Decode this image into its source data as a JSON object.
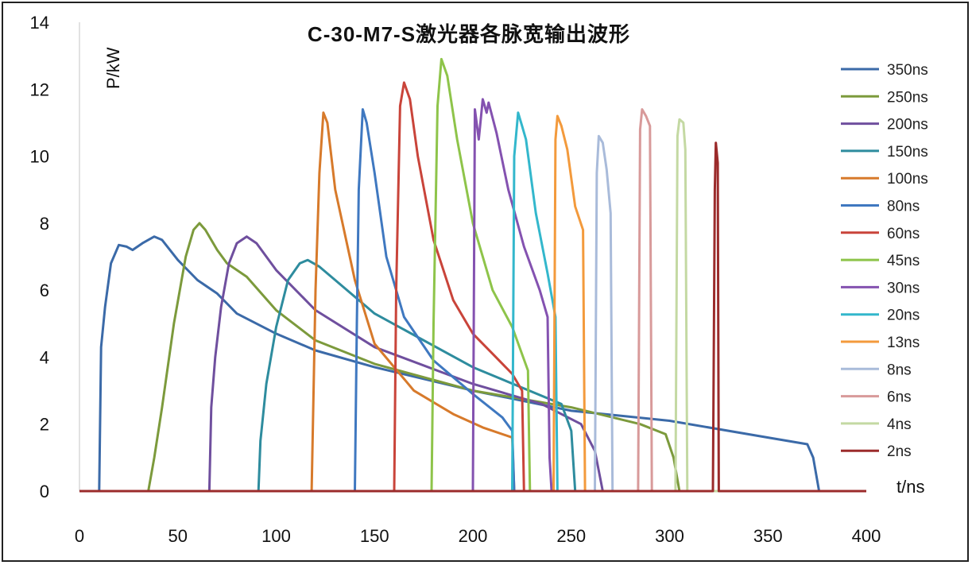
{
  "chart_data": {
    "type": "line",
    "title": "C-30-M7-S激光器各脉宽输出波形",
    "xlabel": "t/ns",
    "ylabel": "P/kW",
    "xlim": [
      0,
      400
    ],
    "ylim": [
      0,
      14
    ],
    "x_ticks": [
      "0",
      "50",
      "100",
      "150",
      "200",
      "250",
      "300",
      "350",
      "400"
    ],
    "y_ticks": [
      "0",
      "2",
      "4",
      "6",
      "8",
      "10",
      "12",
      "14"
    ],
    "grid": false,
    "legend_position": "right",
    "series": [
      {
        "name": "350ns",
        "color": "#3b6aa8",
        "points": [
          [
            0,
            0
          ],
          [
            10,
            0
          ],
          [
            11,
            4.3
          ],
          [
            13,
            5.5
          ],
          [
            16,
            6.8
          ],
          [
            20,
            7.35
          ],
          [
            24,
            7.3
          ],
          [
            27,
            7.2
          ],
          [
            32,
            7.4
          ],
          [
            38,
            7.6
          ],
          [
            42,
            7.5
          ],
          [
            50,
            6.9
          ],
          [
            60,
            6.3
          ],
          [
            70,
            5.9
          ],
          [
            80,
            5.3
          ],
          [
            100,
            4.7
          ],
          [
            120,
            4.2
          ],
          [
            150,
            3.7
          ],
          [
            200,
            3.0
          ],
          [
            250,
            2.4
          ],
          [
            300,
            2.1
          ],
          [
            350,
            1.6
          ],
          [
            370,
            1.4
          ],
          [
            373,
            1.0
          ],
          [
            376,
            0
          ],
          [
            400,
            0
          ]
        ]
      },
      {
        "name": "250ns",
        "color": "#7c9a3c",
        "points": [
          [
            0,
            0
          ],
          [
            35,
            0
          ],
          [
            38,
            1.0
          ],
          [
            42,
            2.5
          ],
          [
            48,
            5.0
          ],
          [
            54,
            7.0
          ],
          [
            58,
            7.8
          ],
          [
            61,
            8.0
          ],
          [
            64,
            7.8
          ],
          [
            70,
            7.2
          ],
          [
            75,
            6.8
          ],
          [
            85,
            6.4
          ],
          [
            100,
            5.4
          ],
          [
            120,
            4.5
          ],
          [
            150,
            3.8
          ],
          [
            200,
            3.0
          ],
          [
            250,
            2.5
          ],
          [
            285,
            2.0
          ],
          [
            298,
            1.7
          ],
          [
            302,
            1.0
          ],
          [
            305,
            0
          ],
          [
            400,
            0
          ]
        ]
      },
      {
        "name": "200ns",
        "color": "#6f4f9e",
        "points": [
          [
            0,
            0
          ],
          [
            66,
            0
          ],
          [
            67,
            2.5
          ],
          [
            69,
            4.0
          ],
          [
            72,
            5.5
          ],
          [
            76,
            6.8
          ],
          [
            80,
            7.4
          ],
          [
            85,
            7.6
          ],
          [
            90,
            7.4
          ],
          [
            100,
            6.6
          ],
          [
            120,
            5.4
          ],
          [
            150,
            4.3
          ],
          [
            200,
            3.2
          ],
          [
            235,
            2.6
          ],
          [
            255,
            2.0
          ],
          [
            262,
            1.2
          ],
          [
            266,
            0
          ],
          [
            400,
            0
          ]
        ]
      },
      {
        "name": "150ns",
        "color": "#2e8c9e",
        "points": [
          [
            0,
            0
          ],
          [
            91,
            0
          ],
          [
            92,
            1.5
          ],
          [
            95,
            3.2
          ],
          [
            100,
            4.9
          ],
          [
            106,
            6.3
          ],
          [
            112,
            6.8
          ],
          [
            116,
            6.9
          ],
          [
            122,
            6.7
          ],
          [
            130,
            6.3
          ],
          [
            150,
            5.3
          ],
          [
            200,
            3.7
          ],
          [
            245,
            2.6
          ],
          [
            250,
            1.8
          ],
          [
            252,
            0
          ],
          [
            400,
            0
          ]
        ]
      },
      {
        "name": "100ns",
        "color": "#d77a2b",
        "points": [
          [
            0,
            0
          ],
          [
            118,
            0
          ],
          [
            120,
            6.0
          ],
          [
            122,
            9.5
          ],
          [
            124,
            11.3
          ],
          [
            126,
            11.0
          ],
          [
            130,
            9.0
          ],
          [
            140,
            6.3
          ],
          [
            150,
            4.4
          ],
          [
            170,
            3.0
          ],
          [
            190,
            2.3
          ],
          [
            205,
            1.9
          ],
          [
            220,
            1.6
          ],
          [
            221,
            0
          ],
          [
            400,
            0
          ]
        ]
      },
      {
        "name": "80ns",
        "color": "#3f78c0",
        "points": [
          [
            0,
            0
          ],
          [
            140,
            0
          ],
          [
            141,
            5.0
          ],
          [
            142,
            9.0
          ],
          [
            144,
            11.4
          ],
          [
            146,
            11.0
          ],
          [
            150,
            9.5
          ],
          [
            156,
            7.0
          ],
          [
            165,
            5.2
          ],
          [
            180,
            3.9
          ],
          [
            200,
            2.9
          ],
          [
            215,
            2.2
          ],
          [
            220,
            1.8
          ],
          [
            221,
            0
          ],
          [
            400,
            0
          ]
        ]
      },
      {
        "name": "60ns",
        "color": "#c9443a",
        "points": [
          [
            0,
            0
          ],
          [
            160,
            0
          ],
          [
            161,
            6.0
          ],
          [
            163,
            11.5
          ],
          [
            165,
            12.2
          ],
          [
            168,
            11.7
          ],
          [
            172,
            10.0
          ],
          [
            180,
            7.5
          ],
          [
            190,
            5.7
          ],
          [
            200,
            4.7
          ],
          [
            210,
            4.1
          ],
          [
            220,
            3.5
          ],
          [
            225,
            3.0
          ],
          [
            226,
            0
          ],
          [
            400,
            0
          ]
        ]
      },
      {
        "name": "45ns",
        "color": "#8ec44a",
        "points": [
          [
            0,
            0
          ],
          [
            179,
            0
          ],
          [
            180,
            5.0
          ],
          [
            182,
            11.5
          ],
          [
            184,
            12.9
          ],
          [
            187,
            12.4
          ],
          [
            192,
            10.5
          ],
          [
            200,
            8.0
          ],
          [
            210,
            6.0
          ],
          [
            220,
            4.9
          ],
          [
            228,
            3.6
          ],
          [
            229,
            0
          ],
          [
            400,
            0
          ]
        ]
      },
      {
        "name": "30ns",
        "color": "#8452b0",
        "points": [
          [
            0,
            0
          ],
          [
            200,
            0
          ],
          [
            201,
            11.4
          ],
          [
            203,
            10.5
          ],
          [
            205,
            11.7
          ],
          [
            207,
            11.3
          ],
          [
            208,
            11.6
          ],
          [
            212,
            10.7
          ],
          [
            218,
            9.0
          ],
          [
            226,
            7.3
          ],
          [
            234,
            6.0
          ],
          [
            238,
            5.2
          ],
          [
            239,
            1.0
          ],
          [
            240,
            0
          ],
          [
            400,
            0
          ]
        ]
      },
      {
        "name": "20ns",
        "color": "#33b7cc",
        "points": [
          [
            0,
            0
          ],
          [
            220,
            0
          ],
          [
            221,
            10.0
          ],
          [
            223,
            11.3
          ],
          [
            225,
            10.9
          ],
          [
            227,
            10.5
          ],
          [
            232,
            8.3
          ],
          [
            238,
            6.5
          ],
          [
            242,
            5.2
          ],
          [
            243,
            0
          ],
          [
            400,
            0
          ]
        ]
      },
      {
        "name": "13ns",
        "color": "#f39a3c",
        "points": [
          [
            0,
            0
          ],
          [
            241,
            0
          ],
          [
            242,
            10.5
          ],
          [
            243,
            11.2
          ],
          [
            245,
            10.9
          ],
          [
            248,
            10.2
          ],
          [
            252,
            8.5
          ],
          [
            256,
            7.8
          ],
          [
            257,
            0
          ],
          [
            400,
            0
          ]
        ]
      },
      {
        "name": "8ns",
        "color": "#a9bbda",
        "points": [
          [
            0,
            0
          ],
          [
            262,
            0
          ],
          [
            263,
            9.5
          ],
          [
            264,
            10.6
          ],
          [
            266,
            10.4
          ],
          [
            268,
            9.6
          ],
          [
            270,
            8.3
          ],
          [
            271,
            0
          ],
          [
            400,
            0
          ]
        ]
      },
      {
        "name": "6ns",
        "color": "#d89a9a",
        "points": [
          [
            0,
            0
          ],
          [
            284,
            0
          ],
          [
            285,
            10.8
          ],
          [
            286,
            11.4
          ],
          [
            288,
            11.2
          ],
          [
            290,
            10.9
          ],
          [
            291,
            0
          ],
          [
            400,
            0
          ]
        ]
      },
      {
        "name": "4ns",
        "color": "#c4d9a3",
        "points": [
          [
            0,
            0
          ],
          [
            303,
            0
          ],
          [
            304,
            10.6
          ],
          [
            305,
            11.1
          ],
          [
            307,
            11.0
          ],
          [
            308,
            10.2
          ],
          [
            309,
            0
          ],
          [
            400,
            0
          ]
        ]
      },
      {
        "name": "2ns",
        "color": "#9b2b2b",
        "points": [
          [
            0,
            0
          ],
          [
            322,
            0
          ],
          [
            323,
            9.0
          ],
          [
            323.5,
            10.4
          ],
          [
            324.5,
            9.8
          ],
          [
            325,
            0
          ],
          [
            400,
            0
          ]
        ]
      }
    ]
  }
}
